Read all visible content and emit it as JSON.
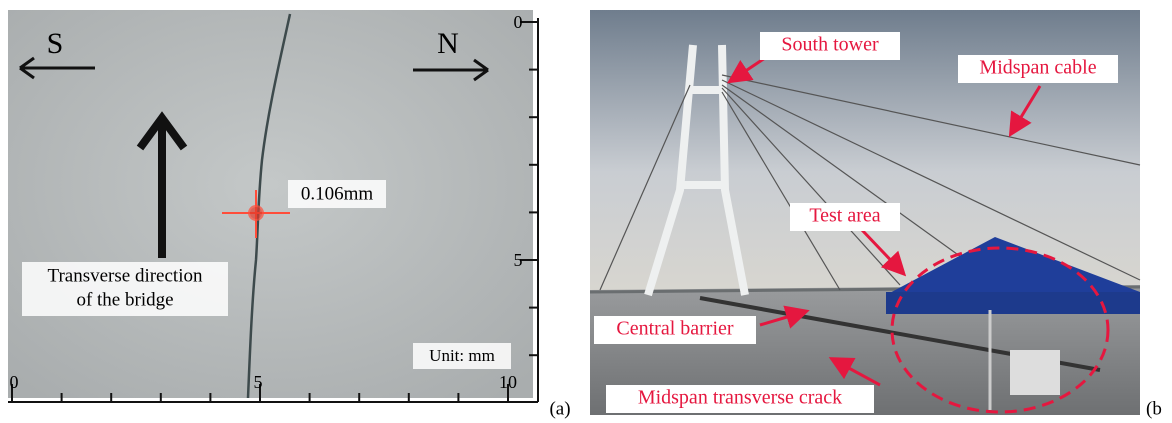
{
  "panel_a": {
    "west": "S",
    "east": "N",
    "crack_width": "0.106mm",
    "direction_label": [
      "Transverse direction",
      "of the bridge"
    ],
    "unit": "Unit: mm",
    "ruler_right": [
      "0",
      "5"
    ],
    "ruler_bottom": [
      "0",
      "5",
      "10"
    ],
    "tag": "(a)"
  },
  "panel_b": {
    "south_tower": "South tower",
    "midspan_cable": "Midspan cable",
    "test_area": "Test area",
    "central_barrier": "Central barrier",
    "crack": "Midspan transverse crack",
    "tag": "(b"
  }
}
